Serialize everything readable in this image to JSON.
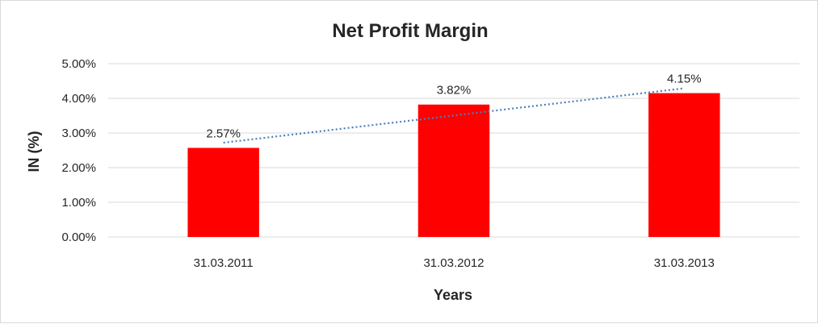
{
  "chart_data": {
    "type": "bar",
    "title": "Net Profit Margin",
    "xlabel": "Years",
    "ylabel": "IN (%)",
    "categories": [
      "31.03.2011",
      "31.03.2012",
      "31.03.2013"
    ],
    "values": [
      2.57,
      3.82,
      4.15
    ],
    "value_labels": [
      "2.57%",
      "3.82%",
      "4.15%"
    ],
    "ylim": [
      0,
      5
    ],
    "yticks": [
      0,
      1,
      2,
      3,
      4,
      5
    ],
    "ytick_labels": [
      "0.00%",
      "1.00%",
      "2.00%",
      "3.00%",
      "4.00%",
      "5.00%"
    ],
    "grid": true,
    "legend": "none",
    "bar_color": "#ff0000",
    "trendline": {
      "type": "linear",
      "style": "dotted",
      "color": "#4a7ebb",
      "start_value": 2.72,
      "end_value": 4.29
    }
  }
}
